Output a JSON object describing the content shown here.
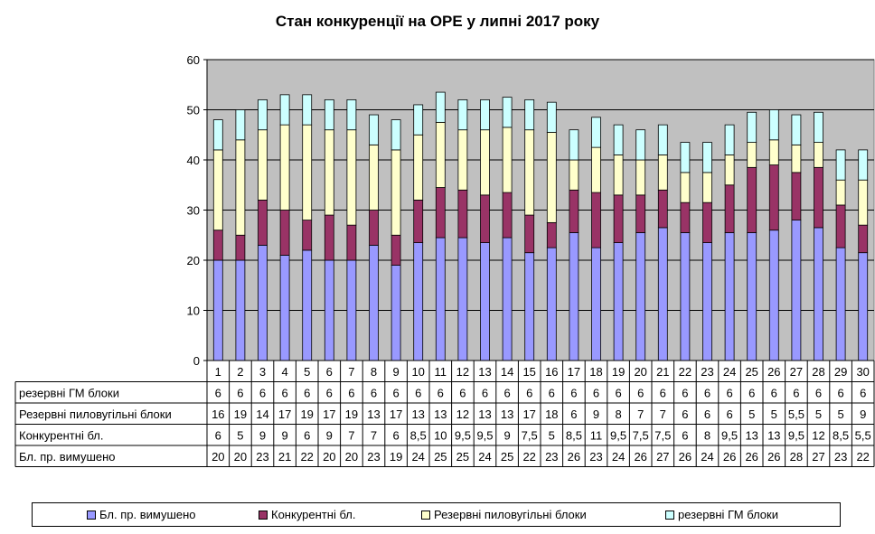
{
  "chart_data": {
    "type": "bar",
    "stacked": true,
    "title": "Стан конкуренції на ОРЕ  у липні 2017 року",
    "ylim": [
      0,
      60
    ],
    "y_ticks": [
      "0",
      "10",
      "20",
      "30",
      "40",
      "50",
      "60"
    ],
    "grid": true,
    "legend_position": "bottom",
    "plot_background": "#c0c0c0",
    "categories": [
      "1",
      "2",
      "3",
      "4",
      "5",
      "6",
      "7",
      "8",
      "9",
      "10",
      "11",
      "12",
      "13",
      "14",
      "15",
      "16",
      "17",
      "18",
      "19",
      "20",
      "21",
      "22",
      "23",
      "24",
      "25",
      "26",
      "27",
      "28",
      "29",
      "30"
    ],
    "series": [
      {
        "name": "Бл. пр. вимушено",
        "color": "#9999ff",
        "values": [
          20,
          20,
          23,
          21,
          22,
          20,
          20,
          23,
          19,
          23.5,
          24.5,
          24.5,
          23.5,
          24.5,
          21.5,
          22.5,
          25.5,
          22.5,
          23.5,
          25.5,
          26.5,
          25.5,
          23.5,
          25.5,
          25.5,
          26,
          28,
          26.5,
          22.5,
          21.5
        ],
        "labels": [
          "20",
          "20",
          "23",
          "21",
          "22",
          "20",
          "20",
          "23",
          "19",
          "24",
          "25",
          "25",
          "24",
          "25",
          "22",
          "23",
          "26",
          "23",
          "24",
          "26",
          "27",
          "26",
          "24",
          "26",
          "26",
          "26",
          "28",
          "27",
          "23",
          "22"
        ]
      },
      {
        "name": "Конкурентні бл.",
        "color": "#993366",
        "values": [
          6,
          5,
          9,
          9,
          6,
          9,
          7,
          7,
          6,
          8.5,
          10,
          9.5,
          9.5,
          9,
          7.5,
          5,
          8.5,
          11,
          9.5,
          7.5,
          7.5,
          6,
          8,
          9.5,
          13,
          13,
          9.5,
          12,
          8.5,
          5.5
        ],
        "labels": [
          "6",
          "5",
          "9",
          "9",
          "6",
          "9",
          "7",
          "7",
          "6",
          "8,5",
          "10",
          "9,5",
          "9,5",
          "9",
          "7,5",
          "5",
          "8,5",
          "11",
          "9,5",
          "7,5",
          "7,5",
          "6",
          "8",
          "9,5",
          "13",
          "13",
          "9,5",
          "12",
          "8,5",
          "5,5"
        ]
      },
      {
        "name": "Резервні пиловугільні  блоки",
        "color": "#ffffcc",
        "values": [
          16,
          19,
          14,
          17,
          19,
          17,
          19,
          13,
          17,
          13,
          13,
          12,
          13,
          13,
          17,
          18,
          6,
          9,
          8,
          7,
          7,
          6,
          6,
          6,
          5,
          5,
          5.5,
          5,
          5,
          9
        ],
        "labels": [
          "16",
          "19",
          "14",
          "17",
          "19",
          "17",
          "19",
          "13",
          "17",
          "13",
          "13",
          "12",
          "13",
          "13",
          "17",
          "18",
          "6",
          "9",
          "8",
          "7",
          "7",
          "6",
          "6",
          "6",
          "5",
          "5",
          "5,5",
          "5",
          "5",
          "9"
        ]
      },
      {
        "name": "резервні ГМ блоки",
        "color": "#ccffff",
        "values": [
          6,
          6,
          6,
          6,
          6,
          6,
          6,
          6,
          6,
          6,
          6,
          6,
          6,
          6,
          6,
          6,
          6,
          6,
          6,
          6,
          6,
          6,
          6,
          6,
          6,
          6,
          6,
          6,
          6,
          6
        ],
        "labels": [
          "6",
          "6",
          "6",
          "6",
          "6",
          "6",
          "6",
          "6",
          "6",
          "6",
          "6",
          "6",
          "6",
          "6",
          "6",
          "6",
          "6",
          "6",
          "6",
          "6",
          "6",
          "6",
          "6",
          "6",
          "6",
          "6",
          "6",
          "6",
          "6",
          "6"
        ]
      }
    ],
    "table_row_order": [
      3,
      2,
      1,
      0
    ]
  }
}
